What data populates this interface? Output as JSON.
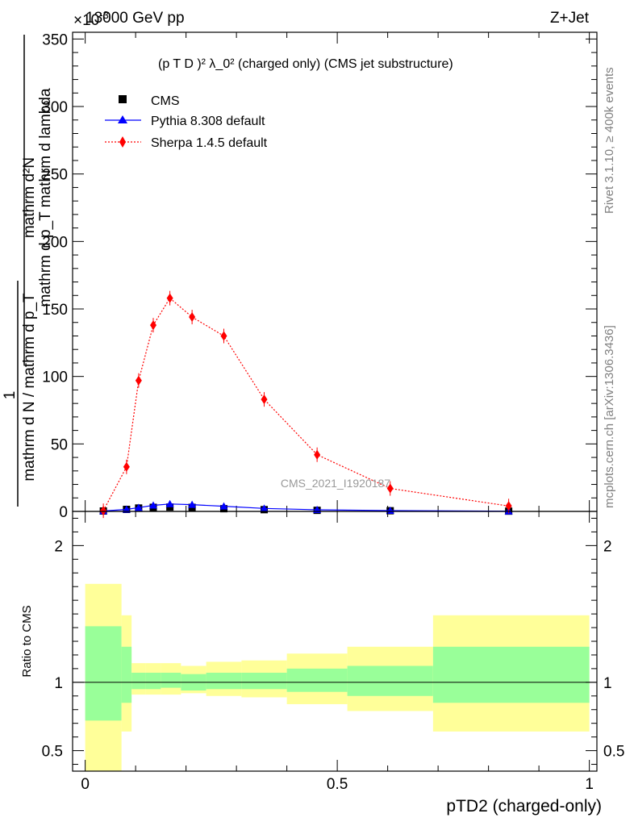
{
  "header": {
    "process_left": "13000 GeV pp",
    "process_right": "Z+Jet",
    "exponent": "×10",
    "exponent_power": "-3",
    "observable": "(p T D )² λ_0² (charged only) (CMS jet substructure)",
    "watermark": "CMS_2021_I1920187",
    "side_rivet": "Rivet 3.1.10, ≥ 400k events",
    "side_mcplots": "mcplots.cern.ch [arXiv:1306.3436]"
  },
  "colors": {
    "cms": "#000000",
    "pythia": "#0000ff",
    "sherpa": "#ff0000",
    "band_inner": "#99ff99",
    "band_outer": "#ffff99"
  },
  "chart_data": [
    {
      "type": "scatter",
      "title": "(p_T^D)^2 λ_0^2 (charged only) (CMS jet substructure)",
      "xlabel": "",
      "ylabel": "1 / mathrm d N / mathrm d p_T  mathrm d^2N / mathrm d p_T mathrm d lambda",
      "ylabel_top": "mathrm d²N",
      "ylabel_mid": "mathrm d p_T mathrm d lambda",
      "ylabel_one": "1",
      "ylabel_bottom": "mathrm d N / mathrm d p_T",
      "xlim": [
        -0.025,
        1.015
      ],
      "ylim": [
        0,
        355
      ],
      "y_ticks": [
        0,
        50,
        100,
        150,
        200,
        250,
        300,
        350
      ],
      "y_tick_labels": [
        "0",
        "50",
        "100",
        "150",
        "200",
        "250",
        "300",
        "350"
      ],
      "y_scale_note": "×10⁻³",
      "legend": [
        "CMS",
        "Pythia 8.308 default",
        "Sherpa 1.4.5 default"
      ],
      "series": [
        {
          "name": "CMS",
          "marker": "square",
          "x": [
            0.036,
            0.082,
            0.106,
            0.135,
            0.168,
            0.212,
            0.275,
            0.355,
            0.46,
            0.605,
            0.84
          ],
          "y": [
            0.3,
            1.5,
            2.5,
            3.0,
            3.2,
            3.0,
            2.0,
            1.3,
            0.8,
            0.5,
            0.2
          ]
        },
        {
          "name": "Pythia 8.308 default",
          "marker": "triangle",
          "x": [
            0.036,
            0.082,
            0.106,
            0.135,
            0.168,
            0.212,
            0.275,
            0.355,
            0.46,
            0.605,
            0.84
          ],
          "y": [
            0.3,
            1.5,
            2.8,
            4.5,
            5.5,
            5.0,
            3.8,
            2.2,
            1.2,
            0.6,
            0.15
          ]
        },
        {
          "name": "Sherpa 1.4.5 default",
          "marker": "diamond",
          "x": [
            0.036,
            0.082,
            0.106,
            0.135,
            0.168,
            0.212,
            0.275,
            0.355,
            0.46,
            0.605,
            0.84
          ],
          "y": [
            0.5,
            33,
            97,
            138,
            158,
            144,
            130,
            83,
            42,
            17,
            4
          ]
        }
      ]
    },
    {
      "type": "area",
      "title": "",
      "xlabel": "pTD2 (charged-only)",
      "ylabel": "Ratio to CMS",
      "xlim": [
        -0.025,
        1.015
      ],
      "ylim": [
        0.35,
        2.25
      ],
      "x_ticks": [
        0,
        0.5,
        1
      ],
      "x_tick_labels": [
        "0",
        "0.5",
        "1"
      ],
      "y_ticks": [
        0.5,
        1,
        2
      ],
      "y_tick_labels": [
        "0.5",
        "1",
        "2"
      ],
      "reference_line": 1,
      "bin_edges": [
        0,
        0.072,
        0.092,
        0.12,
        0.15,
        0.19,
        0.24,
        0.31,
        0.4,
        0.52,
        0.69,
        1.0
      ],
      "band_inner_low": [
        0.72,
        0.85,
        0.95,
        0.95,
        0.96,
        0.94,
        0.95,
        0.95,
        0.93,
        0.9,
        0.85
      ],
      "band_inner_high": [
        1.41,
        1.26,
        1.07,
        1.07,
        1.07,
        1.06,
        1.07,
        1.07,
        1.1,
        1.12,
        1.26
      ],
      "band_outer_low": [
        0.3,
        0.64,
        0.91,
        0.91,
        0.91,
        0.92,
        0.9,
        0.89,
        0.84,
        0.79,
        0.64
      ],
      "band_outer_high": [
        1.72,
        1.49,
        1.14,
        1.14,
        1.14,
        1.12,
        1.15,
        1.16,
        1.21,
        1.26,
        1.49
      ]
    }
  ]
}
